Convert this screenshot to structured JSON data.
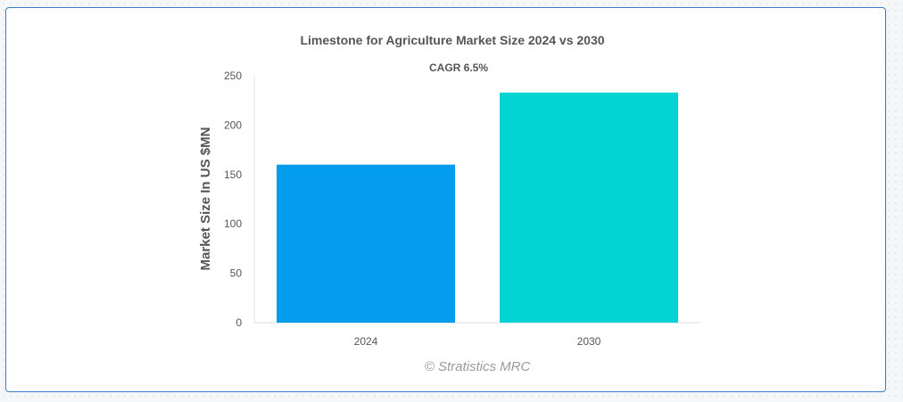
{
  "chart_data": {
    "type": "bar",
    "title": "Limestone for Agriculture Market Size 2024 vs 2030",
    "subtitle": "CAGR 6.5%",
    "xlabel": "",
    "ylabel": "Market Size In US $MN",
    "categories": [
      "2024",
      "2030"
    ],
    "values": [
      160,
      233
    ],
    "colors": [
      "#049cec",
      "#03d3d3"
    ],
    "ylim": [
      0,
      250
    ],
    "yticks": [
      0,
      50,
      100,
      150,
      200,
      250
    ],
    "grid": false,
    "legend": "none"
  },
  "watermark": "© Stratistics MRC"
}
